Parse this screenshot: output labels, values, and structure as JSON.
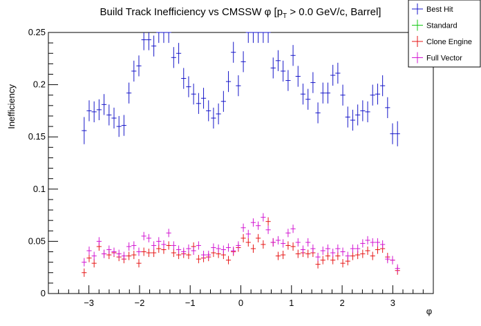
{
  "chart_data": {
    "type": "scatter",
    "title": "Build Track Inefficiency vs CMSSW φ [p",
    "title_sub": "T",
    "title_tail": " > 0.0 GeV/c, Barrel]",
    "xlabel": "φ",
    "ylabel": "Inefficiency",
    "xlim": [
      -3.8,
      3.8
    ],
    "ylim": [
      0,
      0.25
    ],
    "xticks": [
      "−3",
      "−2",
      "−1",
      "0",
      "1",
      "2",
      "3"
    ],
    "xtick_values": [
      -3,
      -2,
      -1,
      0,
      1,
      2,
      3
    ],
    "yticks": [
      "0",
      "0.05",
      "0.1",
      "0.15",
      "0.2",
      "0.25"
    ],
    "ytick_values": [
      0,
      0.05,
      0.1,
      0.15,
      0.2,
      0.25
    ],
    "legend_position": "top-right",
    "bin_width": 0.0982,
    "x": [
      -3.093,
      -2.995,
      -2.897,
      -2.799,
      -2.701,
      -2.602,
      -2.504,
      -2.406,
      -2.308,
      -2.209,
      -2.111,
      -2.013,
      -1.915,
      -1.817,
      -1.718,
      -1.62,
      -1.522,
      -1.424,
      -1.326,
      -1.227,
      -1.129,
      -1.031,
      -0.933,
      -0.834,
      -0.736,
      -0.638,
      -0.54,
      -0.442,
      -0.343,
      -0.245,
      -0.147,
      -0.049,
      0.049,
      0.147,
      0.245,
      0.343,
      0.442,
      0.54,
      0.638,
      0.736,
      0.834,
      0.933,
      1.031,
      1.129,
      1.227,
      1.326,
      1.424,
      1.522,
      1.62,
      1.718,
      1.817,
      1.915,
      2.013,
      2.111,
      2.209,
      2.308,
      2.406,
      2.504,
      2.602,
      2.701,
      2.799,
      2.897,
      2.995,
      3.093
    ],
    "series": [
      {
        "name": "Best Hit",
        "color": "#1414c8",
        "values": [
          0.156,
          0.175,
          0.174,
          0.176,
          0.181,
          0.171,
          0.168,
          0.16,
          0.161,
          0.192,
          0.213,
          0.218,
          0.243,
          0.243,
          0.237,
          0.25,
          0.25,
          0.25,
          0.226,
          0.23,
          0.206,
          0.198,
          0.191,
          0.182,
          0.187,
          0.175,
          0.168,
          0.172,
          0.184,
          0.203,
          0.231,
          0.199,
          0.222,
          0.25,
          0.25,
          0.25,
          0.25,
          0.25,
          0.216,
          0.223,
          0.213,
          0.204,
          0.228,
          0.208,
          0.191,
          0.186,
          0.202,
          0.173,
          0.192,
          0.192,
          0.209,
          0.211,
          0.19,
          0.169,
          0.166,
          0.171,
          0.175,
          0.174,
          0.19,
          0.191,
          0.199,
          0.178,
          0.153,
          0.153
        ],
        "errors": [
          0.013,
          0.01,
          0.01,
          0.01,
          0.01,
          0.01,
          0.01,
          0.01,
          0.01,
          0.01,
          0.01,
          0.01,
          0.01,
          0.01,
          0.01,
          0.01,
          0.01,
          0.01,
          0.01,
          0.01,
          0.01,
          0.01,
          0.01,
          0.01,
          0.01,
          0.01,
          0.01,
          0.01,
          0.01,
          0.01,
          0.01,
          0.01,
          0.01,
          0.01,
          0.01,
          0.01,
          0.01,
          0.01,
          0.01,
          0.01,
          0.01,
          0.01,
          0.01,
          0.01,
          0.01,
          0.01,
          0.01,
          0.01,
          0.01,
          0.01,
          0.01,
          0.01,
          0.01,
          0.01,
          0.01,
          0.01,
          0.01,
          0.01,
          0.01,
          0.01,
          0.01,
          0.01,
          0.01,
          0.012
        ]
      },
      {
        "name": "Standard",
        "color": "#14c814",
        "values": [],
        "errors": []
      },
      {
        "name": "Clone Engine",
        "color": "#e61414",
        "values": [
          0.02,
          0.034,
          0.029,
          0.045,
          0.038,
          0.037,
          0.039,
          0.035,
          0.033,
          0.036,
          0.037,
          0.029,
          0.04,
          0.039,
          0.039,
          0.043,
          0.042,
          0.046,
          0.039,
          0.037,
          0.038,
          0.037,
          0.045,
          0.033,
          0.034,
          0.035,
          0.039,
          0.038,
          0.037,
          0.032,
          0.04,
          0.044,
          0.053,
          0.049,
          0.043,
          0.053,
          0.047,
          0.069,
          0.049,
          0.036,
          0.037,
          0.046,
          0.045,
          0.038,
          0.039,
          0.038,
          0.039,
          0.028,
          0.032,
          0.036,
          0.032,
          0.036,
          0.029,
          0.031,
          0.036,
          0.037,
          0.038,
          0.041,
          0.036,
          0.042,
          0.043,
          0.035,
          0.032,
          0.022
        ],
        "errors": [
          0.004,
          0.004,
          0.004,
          0.004,
          0.004,
          0.004,
          0.004,
          0.004,
          0.004,
          0.004,
          0.004,
          0.004,
          0.004,
          0.004,
          0.004,
          0.004,
          0.004,
          0.004,
          0.004,
          0.004,
          0.004,
          0.004,
          0.004,
          0.004,
          0.004,
          0.004,
          0.004,
          0.004,
          0.004,
          0.004,
          0.004,
          0.004,
          0.004,
          0.004,
          0.004,
          0.004,
          0.004,
          0.004,
          0.004,
          0.004,
          0.004,
          0.004,
          0.004,
          0.004,
          0.004,
          0.004,
          0.004,
          0.004,
          0.004,
          0.004,
          0.004,
          0.004,
          0.004,
          0.004,
          0.004,
          0.004,
          0.004,
          0.004,
          0.004,
          0.004,
          0.004,
          0.004,
          0.004,
          0.004
        ]
      },
      {
        "name": "Full Vector",
        "color": "#d214d2",
        "values": [
          0.03,
          0.041,
          0.036,
          0.05,
          0.038,
          0.042,
          0.04,
          0.038,
          0.036,
          0.045,
          0.046,
          0.04,
          0.055,
          0.053,
          0.046,
          0.05,
          0.047,
          0.058,
          0.046,
          0.042,
          0.04,
          0.043,
          0.041,
          0.046,
          0.037,
          0.037,
          0.044,
          0.043,
          0.042,
          0.044,
          0.041,
          0.046,
          0.063,
          0.057,
          0.068,
          0.065,
          0.073,
          0.061,
          0.049,
          0.051,
          0.048,
          0.058,
          0.062,
          0.049,
          0.042,
          0.049,
          0.043,
          0.035,
          0.041,
          0.043,
          0.039,
          0.043,
          0.04,
          0.036,
          0.043,
          0.043,
          0.048,
          0.051,
          0.049,
          0.049,
          0.047,
          0.033,
          0.032,
          0.024
        ],
        "errors": [
          0.004,
          0.004,
          0.004,
          0.004,
          0.004,
          0.004,
          0.004,
          0.004,
          0.004,
          0.004,
          0.004,
          0.004,
          0.004,
          0.004,
          0.004,
          0.004,
          0.004,
          0.004,
          0.004,
          0.004,
          0.004,
          0.004,
          0.004,
          0.004,
          0.004,
          0.004,
          0.004,
          0.004,
          0.004,
          0.004,
          0.004,
          0.004,
          0.004,
          0.004,
          0.004,
          0.004,
          0.004,
          0.004,
          0.004,
          0.004,
          0.004,
          0.004,
          0.004,
          0.004,
          0.004,
          0.004,
          0.004,
          0.004,
          0.004,
          0.004,
          0.004,
          0.004,
          0.004,
          0.004,
          0.004,
          0.004,
          0.004,
          0.004,
          0.004,
          0.004,
          0.004,
          0.004,
          0.004,
          0.004
        ]
      }
    ]
  }
}
